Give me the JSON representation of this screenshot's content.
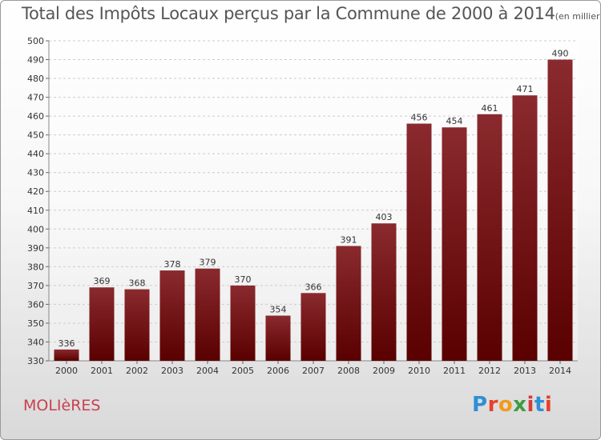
{
  "title": "Total des Impôts Locaux perçus par la Commune de 2000 à 2014",
  "unit_label": "(en milliers d'€)",
  "commune": "MOLIèRES",
  "logo": {
    "letters": [
      "P",
      "r",
      "o",
      "x",
      "i",
      "t",
      "i"
    ],
    "colors": [
      "#2f8fd6",
      "#e8402a",
      "#f29a1a",
      "#3f9b3f",
      "#d63a3a",
      "#2f8fd6",
      "#e8402a"
    ]
  },
  "colors": {
    "bar_top": "#8a2a2e",
    "bar_bottom": "#5a0000",
    "axis_text": "#333333",
    "grid": "#cccccc"
  },
  "chart_data": {
    "type": "bar",
    "categories": [
      "2000",
      "2001",
      "2002",
      "2003",
      "2004",
      "2005",
      "2006",
      "2007",
      "2008",
      "2009",
      "2010",
      "2011",
      "2012",
      "2013",
      "2014"
    ],
    "values": [
      336,
      369,
      368,
      378,
      379,
      370,
      354,
      366,
      391,
      403,
      456,
      454,
      461,
      471,
      490
    ],
    "ylim": [
      330,
      500
    ],
    "yticks": [
      330,
      340,
      350,
      360,
      370,
      380,
      390,
      400,
      410,
      420,
      430,
      440,
      450,
      460,
      470,
      480,
      490,
      500
    ],
    "grid": true
  }
}
